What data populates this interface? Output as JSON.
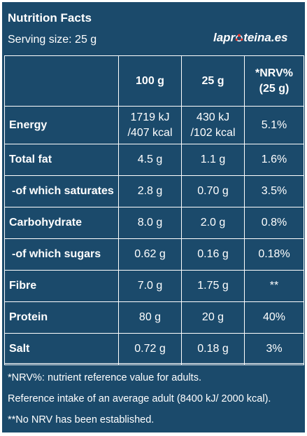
{
  "header": {
    "title": "Nutrition Facts",
    "serving": "Serving size: 25 g",
    "logo_text_a": "lapr",
    "logo_text_b": "teina.es"
  },
  "columns": {
    "col_100g": "100 g",
    "col_25g": "25 g",
    "col_nrv_line1": "*NRV%",
    "col_nrv_line2": "(25 g)"
  },
  "rows": [
    {
      "label": "Energy",
      "v100_a": "1719 kJ",
      "v100_b": "/407 kcal",
      "v25_a": "430 kJ",
      "v25_b": "/102 kcal",
      "nrv": "5.1%"
    },
    {
      "label": "Total fat",
      "v100": "4.5 g",
      "v25": "1.1 g",
      "nrv": "1.6%"
    },
    {
      "label": "-of which saturates",
      "v100": "2.8 g",
      "v25": "0.70 g",
      "nrv": "3.5%"
    },
    {
      "label": "Carbohydrate",
      "v100": "8.0 g",
      "v25": "2.0 g",
      "nrv": "0.8%"
    },
    {
      "label": "-of which sugars",
      "v100": "0.62 g",
      "v25": "0.16 g",
      "nrv": "0.18%"
    },
    {
      "label": "Fibre",
      "v100": "7.0 g",
      "v25": "1.75 g",
      "nrv": "**"
    },
    {
      "label": "Protein",
      "v100": "80 g",
      "v25": "20 g",
      "nrv": "40%"
    },
    {
      "label": "Salt",
      "v100": "0.72 g",
      "v25": "0.18 g",
      "nrv": "3%"
    }
  ],
  "footer": {
    "note1": "*NRV%: nutrient reference value for adults.",
    "note2": "Reference intake of an average adult (8400 kJ/ 2000 kcal).",
    "note3": "**No NRV has been established."
  },
  "colors": {
    "background": "#1b4a6b",
    "text": "#ffffff",
    "logo_accent": "#e8352e"
  }
}
